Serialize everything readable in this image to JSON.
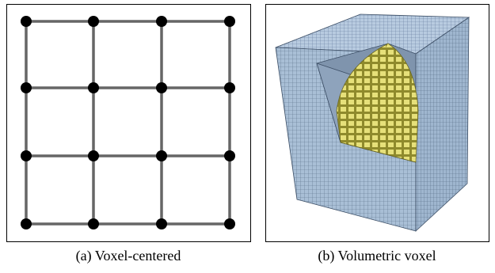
{
  "captions": {
    "a": "(a) Voxel-centered",
    "b": "(b) Volumetric voxel"
  }
}
